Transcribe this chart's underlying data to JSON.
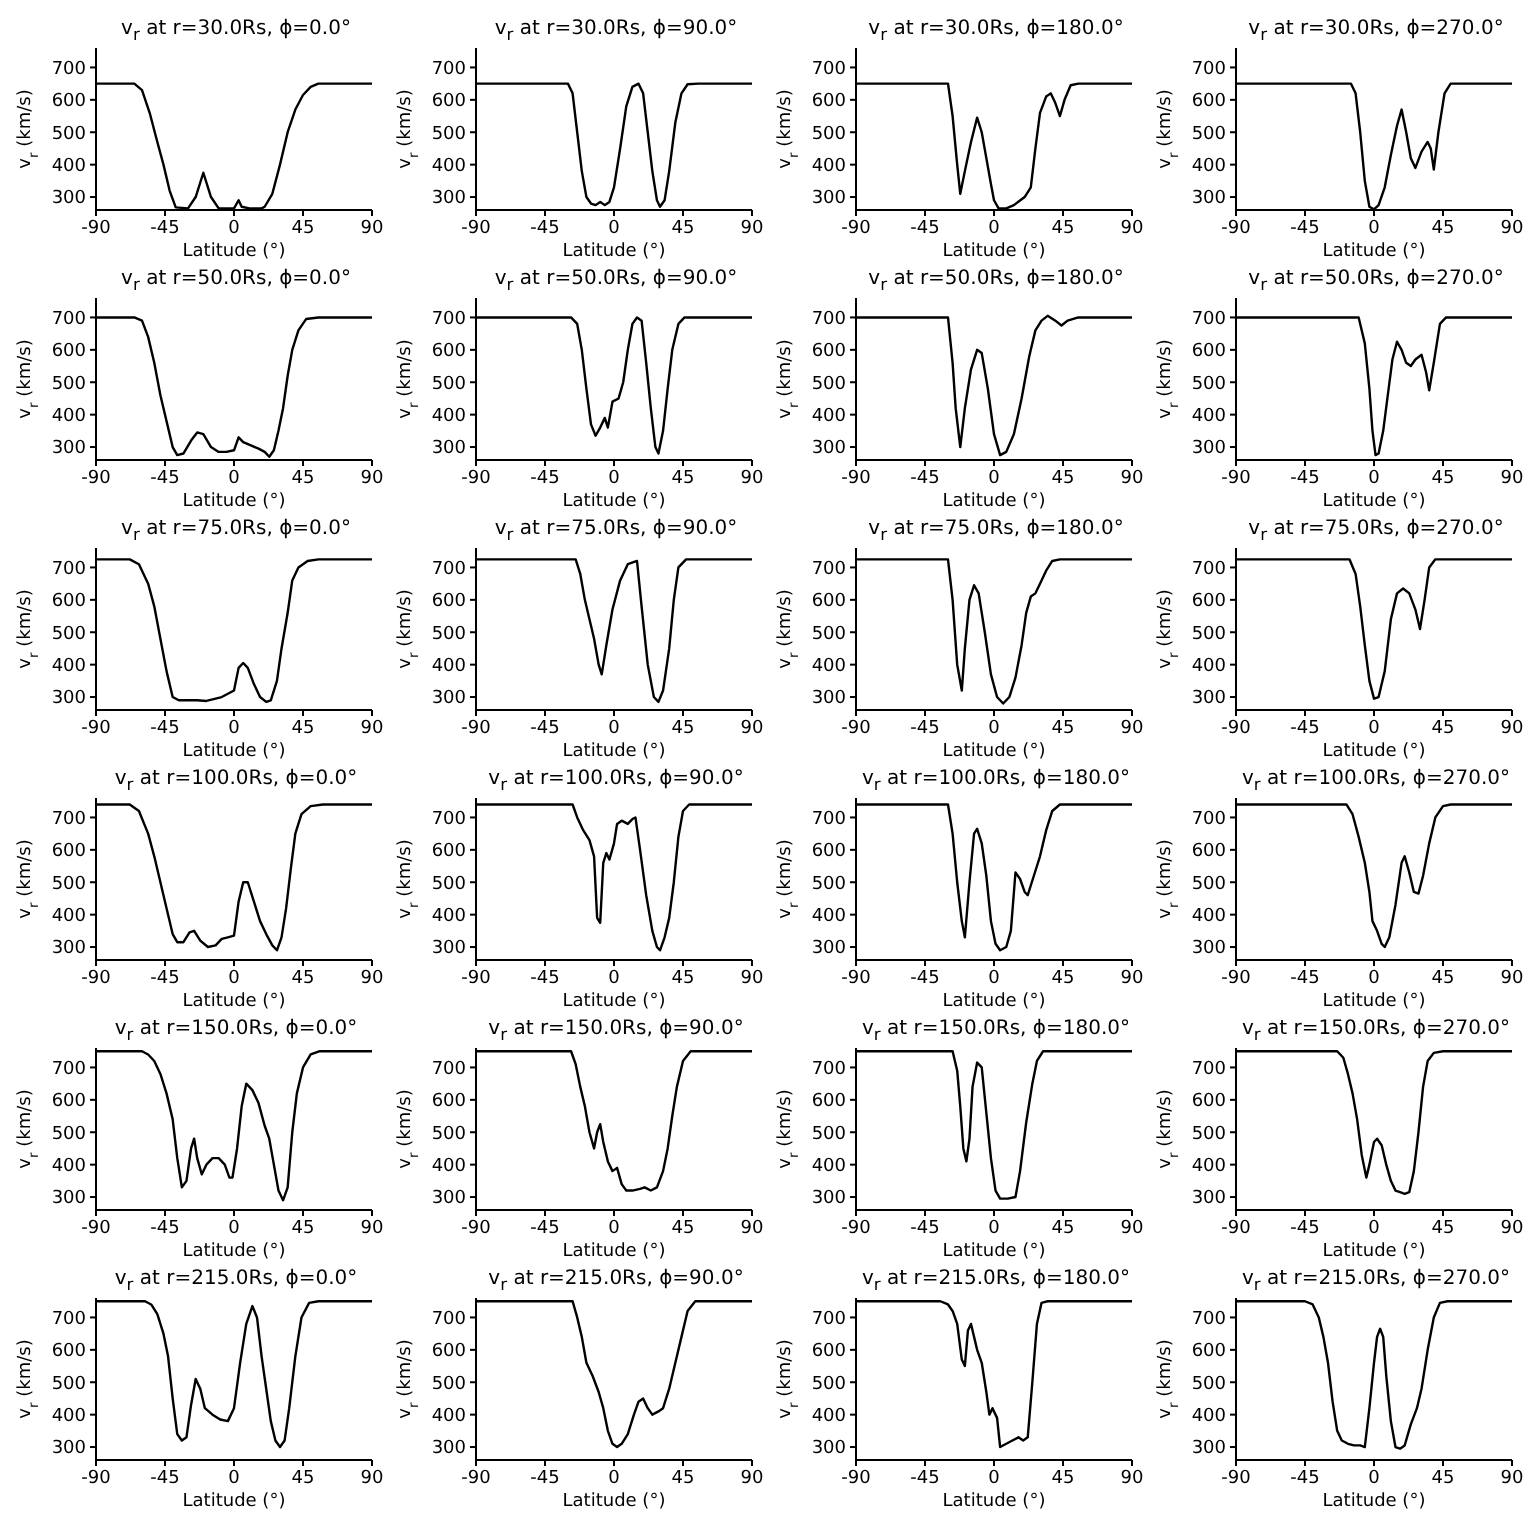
{
  "chart_data": [
    {
      "type": "line",
      "title": "v$_{r}$ at r=30.0Rs, ϕ=0.0°",
      "xlabel": "Latitude (°)",
      "ylabel": "v$_{r}$ (km/s)",
      "color": "#000000",
      "xlim": [
        -90,
        90
      ],
      "ylim": [
        260,
        760
      ],
      "xticks": [
        -90,
        -45,
        0,
        45,
        90
      ],
      "yticks": [
        300,
        400,
        500,
        600,
        700
      ],
      "x": [
        -90,
        -65,
        -60,
        -55,
        -50,
        -46,
        -42,
        -38,
        -30,
        -25,
        -20,
        -15,
        -10,
        0,
        3,
        5,
        10,
        18,
        20,
        25,
        30,
        35,
        40,
        45,
        50,
        55,
        90
      ],
      "values": [
        650,
        650,
        630,
        560,
        470,
        400,
        320,
        268,
        265,
        300,
        375,
        300,
        265,
        265,
        290,
        270,
        265,
        265,
        270,
        310,
        400,
        500,
        570,
        615,
        640,
        650,
        650
      ]
    },
    {
      "type": "line",
      "title": "v$_{r}$ at r=30.0Rs, ϕ=90.0°",
      "xlabel": "Latitude (°)",
      "ylabel": "v$_{r}$ (km/s)",
      "color": "#000000",
      "xlim": [
        -90,
        90
      ],
      "ylim": [
        260,
        760
      ],
      "xticks": [
        -90,
        -45,
        0,
        45,
        90
      ],
      "yticks": [
        300,
        400,
        500,
        600,
        700
      ],
      "x": [
        -90,
        -30,
        -27,
        -24,
        -21,
        -18,
        -15,
        -12,
        -9,
        -6,
        -3,
        0,
        4,
        8,
        12,
        16,
        19,
        22,
        25,
        28,
        30,
        33,
        36,
        40,
        44,
        48,
        55,
        90
      ],
      "values": [
        650,
        650,
        620,
        500,
        380,
        300,
        280,
        275,
        285,
        275,
        285,
        330,
        450,
        580,
        640,
        650,
        620,
        500,
        380,
        290,
        270,
        290,
        380,
        530,
        620,
        648,
        650,
        650
      ]
    },
    {
      "type": "line",
      "title": "v$_{r}$ at r=30.0Rs, ϕ=180.0°",
      "xlabel": "Latitude (°)",
      "ylabel": "v$_{r}$ (km/s)",
      "color": "#000000",
      "xlim": [
        -90,
        90
      ],
      "ylim": [
        260,
        760
      ],
      "xticks": [
        -90,
        -45,
        0,
        45,
        90
      ],
      "yticks": [
        300,
        400,
        500,
        600,
        700
      ],
      "x": [
        -90,
        -30,
        -27,
        -24,
        -22,
        -19,
        -15,
        -11,
        -8,
        -5,
        -2,
        0,
        3,
        8,
        13,
        20,
        24,
        27,
        30,
        34,
        37,
        40,
        43,
        46,
        50,
        55,
        90
      ],
      "values": [
        650,
        650,
        550,
        400,
        310,
        380,
        470,
        545,
        500,
        420,
        340,
        290,
        265,
        265,
        275,
        300,
        330,
        450,
        560,
        610,
        620,
        590,
        550,
        600,
        645,
        650,
        650
      ]
    },
    {
      "type": "line",
      "title": "v$_{r}$ at r=30.0Rs, ϕ=270.0°",
      "xlabel": "Latitude (°)",
      "ylabel": "v$_{r}$ (km/s)",
      "color": "#000000",
      "xlim": [
        -90,
        90
      ],
      "ylim": [
        260,
        760
      ],
      "xticks": [
        -90,
        -45,
        0,
        45,
        90
      ],
      "yticks": [
        300,
        400,
        500,
        600,
        700
      ],
      "x": [
        -90,
        -15,
        -12,
        -9,
        -6,
        -3,
        0,
        3,
        7,
        11,
        15,
        18,
        21,
        24,
        27,
        31,
        35,
        37,
        39,
        42,
        46,
        50,
        90
      ],
      "values": [
        650,
        650,
        620,
        500,
        350,
        270,
        262,
        275,
        330,
        430,
        520,
        570,
        500,
        420,
        390,
        440,
        470,
        450,
        385,
        500,
        620,
        650,
        650
      ]
    },
    {
      "type": "line",
      "title": "v$_{r}$ at r=50.0Rs, ϕ=0.0°",
      "xlabel": "Latitude (°)",
      "ylabel": "v$_{r}$ (km/s)",
      "color": "#000000",
      "xlim": [
        -90,
        90
      ],
      "ylim": [
        260,
        760
      ],
      "xticks": [
        -90,
        -45,
        0,
        45,
        90
      ],
      "yticks": [
        300,
        400,
        500,
        600,
        700
      ],
      "x": [
        -90,
        -65,
        -60,
        -56,
        -52,
        -48,
        -44,
        -40,
        -37,
        -33,
        -28,
        -24,
        -20,
        -15,
        -10,
        -5,
        0,
        3,
        6,
        11,
        16,
        20,
        23,
        26,
        29,
        32,
        35,
        38,
        42,
        47,
        55,
        90
      ],
      "values": [
        700,
        700,
        690,
        640,
        560,
        460,
        380,
        300,
        275,
        280,
        320,
        345,
        340,
        300,
        285,
        285,
        290,
        330,
        315,
        305,
        295,
        285,
        270,
        290,
        350,
        420,
        520,
        600,
        660,
        695,
        700,
        700
      ]
    },
    {
      "type": "line",
      "title": "v$_{r}$ at r=50.0Rs, ϕ=90.0°",
      "xlabel": "Latitude (°)",
      "ylabel": "v$_{r}$ (km/s)",
      "color": "#000000",
      "xlim": [
        -90,
        90
      ],
      "ylim": [
        260,
        760
      ],
      "xticks": [
        -90,
        -45,
        0,
        45,
        90
      ],
      "yticks": [
        300,
        400,
        500,
        600,
        700
      ],
      "x": [
        -90,
        -28,
        -24,
        -21,
        -18,
        -15,
        -12,
        -9,
        -6,
        -4,
        -1,
        3,
        6,
        9,
        12,
        15,
        18,
        21,
        24,
        27,
        29,
        32,
        35,
        38,
        42,
        46,
        90
      ],
      "values": [
        700,
        700,
        680,
        600,
        480,
        370,
        335,
        360,
        390,
        360,
        440,
        450,
        500,
        600,
        680,
        700,
        690,
        560,
        420,
        300,
        280,
        350,
        480,
        600,
        680,
        700,
        700
      ]
    },
    {
      "type": "line",
      "title": "v$_{r}$ at r=50.0Rs, ϕ=180.0°",
      "xlabel": "Latitude (°)",
      "ylabel": "v$_{r}$ (km/s)",
      "color": "#000000",
      "xlim": [
        -90,
        90
      ],
      "ylim": [
        260,
        760
      ],
      "xticks": [
        -90,
        -45,
        0,
        45,
        90
      ],
      "yticks": [
        300,
        400,
        500,
        600,
        700
      ],
      "x": [
        -90,
        -30,
        -27,
        -25,
        -22,
        -19,
        -15,
        -11,
        -8,
        -4,
        0,
        4,
        8,
        13,
        18,
        23,
        27,
        31,
        35,
        40,
        44,
        48,
        55,
        90
      ],
      "values": [
        700,
        700,
        560,
        420,
        300,
        420,
        540,
        600,
        590,
        480,
        340,
        275,
        285,
        340,
        450,
        580,
        660,
        690,
        705,
        690,
        675,
        690,
        700,
        700
      ]
    },
    {
      "type": "line",
      "title": "v$_{r}$ at r=50.0Rs, ϕ=270.0°",
      "xlabel": "Latitude (°)",
      "ylabel": "v$_{r}$ (km/s)",
      "color": "#000000",
      "xlim": [
        -90,
        90
      ],
      "ylim": [
        260,
        760
      ],
      "xticks": [
        -90,
        -45,
        0,
        45,
        90
      ],
      "yticks": [
        300,
        400,
        500,
        600,
        700
      ],
      "x": [
        -90,
        -10,
        -6,
        -3,
        -1,
        1,
        3,
        6,
        9,
        12,
        15,
        18,
        21,
        24,
        27,
        31,
        34,
        36,
        39,
        43,
        47,
        90
      ],
      "values": [
        700,
        700,
        620,
        480,
        350,
        275,
        280,
        350,
        460,
        570,
        625,
        600,
        560,
        550,
        570,
        585,
        530,
        475,
        560,
        680,
        700,
        700
      ]
    },
    {
      "type": "line",
      "title": "v$_{r}$ at r=75.0Rs, ϕ=0.0°",
      "xlabel": "Latitude (°)",
      "ylabel": "v$_{r}$ (km/s)",
      "color": "#000000",
      "xlim": [
        -90,
        90
      ],
      "ylim": [
        260,
        760
      ],
      "xticks": [
        -90,
        -45,
        0,
        45,
        90
      ],
      "yticks": [
        300,
        400,
        500,
        600,
        700
      ],
      "x": [
        -90,
        -68,
        -62,
        -56,
        -52,
        -48,
        -44,
        -40,
        -36,
        -30,
        -24,
        -18,
        -12,
        -8,
        -4,
        0,
        3,
        6,
        9,
        13,
        17,
        21,
        24,
        28,
        31,
        35,
        38,
        42,
        48,
        55,
        90
      ],
      "values": [
        725,
        725,
        710,
        650,
        580,
        480,
        380,
        300,
        290,
        290,
        290,
        288,
        295,
        300,
        310,
        320,
        390,
        405,
        390,
        340,
        300,
        285,
        290,
        350,
        450,
        560,
        660,
        700,
        720,
        725,
        725
      ]
    },
    {
      "type": "line",
      "title": "v$_{r}$ at r=75.0Rs, ϕ=90.0°",
      "xlabel": "Latitude (°)",
      "ylabel": "v$_{r}$ (km/s)",
      "color": "#000000",
      "xlim": [
        -90,
        90
      ],
      "ylim": [
        260,
        760
      ],
      "xticks": [
        -90,
        -45,
        0,
        45,
        90
      ],
      "yticks": [
        300,
        400,
        500,
        600,
        700
      ],
      "x": [
        -90,
        -25,
        -22,
        -19,
        -16,
        -13,
        -10,
        -8,
        -5,
        -1,
        4,
        9,
        15,
        18,
        22,
        26,
        29,
        32,
        36,
        39,
        42,
        47,
        90
      ],
      "values": [
        725,
        725,
        680,
        600,
        540,
        480,
        400,
        370,
        460,
        570,
        660,
        710,
        720,
        580,
        400,
        300,
        285,
        320,
        450,
        600,
        700,
        725,
        725
      ]
    },
    {
      "type": "line",
      "title": "v$_{r}$ at r=75.0Rs, ϕ=180.0°",
      "xlabel": "Latitude (°)",
      "ylabel": "v$_{r}$ (km/s)",
      "color": "#000000",
      "xlim": [
        -90,
        90
      ],
      "ylim": [
        260,
        760
      ],
      "xticks": [
        -90,
        -45,
        0,
        45,
        90
      ],
      "yticks": [
        300,
        400,
        500,
        600,
        700
      ],
      "x": [
        -90,
        -30,
        -27,
        -24,
        -21,
        -19,
        -16,
        -13,
        -10,
        -6,
        -2,
        2,
        6,
        10,
        14,
        18,
        21,
        24,
        27,
        30,
        34,
        38,
        43,
        90
      ],
      "values": [
        725,
        725,
        600,
        400,
        320,
        450,
        600,
        645,
        620,
        500,
        370,
        300,
        280,
        300,
        360,
        460,
        560,
        610,
        620,
        650,
        690,
        720,
        725,
        725
      ]
    },
    {
      "type": "line",
      "title": "v$_{r}$ at r=75.0Rs, ϕ=270.0°",
      "xlabel": "Latitude (°)",
      "ylabel": "v$_{r}$ (km/s)",
      "color": "#000000",
      "xlim": [
        -90,
        90
      ],
      "ylim": [
        260,
        760
      ],
      "xticks": [
        -90,
        -45,
        0,
        45,
        90
      ],
      "yticks": [
        300,
        400,
        500,
        600,
        700
      ],
      "x": [
        -90,
        -16,
        -12,
        -9,
        -6,
        -3,
        0,
        3,
        7,
        11,
        15,
        19,
        23,
        27,
        30,
        33,
        36,
        40,
        90
      ],
      "values": [
        725,
        725,
        680,
        580,
        460,
        350,
        295,
        300,
        380,
        540,
        620,
        635,
        620,
        570,
        510,
        600,
        700,
        725,
        725
      ]
    },
    {
      "type": "line",
      "title": "v$_{r}$ at r=100.0Rs, ϕ=0.0°",
      "xlabel": "Latitude (°)",
      "ylabel": "v$_{r}$ (km/s)",
      "color": "#000000",
      "xlim": [
        -90,
        90
      ],
      "ylim": [
        260,
        760
      ],
      "xticks": [
        -90,
        -45,
        0,
        45,
        90
      ],
      "yticks": [
        300,
        400,
        500,
        600,
        700
      ],
      "x": [
        -90,
        -68,
        -62,
        -56,
        -52,
        -48,
        -44,
        -40,
        -37,
        -33,
        -29,
        -26,
        -22,
        -17,
        -12,
        -8,
        -4,
        0,
        3,
        6,
        9,
        13,
        17,
        21,
        25,
        28,
        31,
        34,
        37,
        40,
        44,
        50,
        58,
        90
      ],
      "values": [
        740,
        740,
        720,
        650,
        580,
        500,
        420,
        340,
        315,
        315,
        345,
        350,
        320,
        300,
        305,
        325,
        330,
        335,
        440,
        500,
        500,
        440,
        380,
        340,
        305,
        290,
        330,
        420,
        540,
        650,
        710,
        735,
        740,
        740
      ]
    },
    {
      "type": "line",
      "title": "v$_{r}$ at r=100.0Rs, ϕ=90.0°",
      "xlabel": "Latitude (°)",
      "ylabel": "v$_{r}$ (km/s)",
      "color": "#000000",
      "xlim": [
        -90,
        90
      ],
      "ylim": [
        260,
        760
      ],
      "xticks": [
        -90,
        -45,
        0,
        45,
        90
      ],
      "yticks": [
        300,
        400,
        500,
        600,
        700
      ],
      "x": [
        -90,
        -27,
        -24,
        -20,
        -16,
        -13,
        -11,
        -9,
        -7,
        -5,
        -3,
        0,
        2,
        5,
        9,
        12,
        14,
        17,
        21,
        25,
        28,
        30,
        33,
        36,
        39,
        42,
        45,
        49,
        90
      ],
      "values": [
        740,
        740,
        700,
        660,
        630,
        580,
        390,
        375,
        560,
        590,
        570,
        620,
        680,
        690,
        680,
        695,
        700,
        600,
        460,
        350,
        300,
        290,
        330,
        390,
        500,
        640,
        720,
        740,
        740
      ]
    },
    {
      "type": "line",
      "title": "v$_{r}$ at r=100.0Rs, ϕ=180.0°",
      "xlabel": "Latitude (°)",
      "ylabel": "v$_{r}$ (km/s)",
      "color": "#000000",
      "xlim": [
        -90,
        90
      ],
      "ylim": [
        260,
        760
      ],
      "xticks": [
        -90,
        -45,
        0,
        45,
        90
      ],
      "yticks": [
        300,
        400,
        500,
        600,
        700
      ],
      "x": [
        -90,
        -30,
        -27,
        -24,
        -21,
        -19,
        -16,
        -13,
        -11,
        -8,
        -5,
        -2,
        1,
        4,
        8,
        11,
        14,
        17,
        20,
        22,
        26,
        30,
        34,
        38,
        43,
        90
      ],
      "values": [
        740,
        740,
        650,
        500,
        380,
        330,
        500,
        650,
        665,
        620,
        520,
        380,
        310,
        290,
        300,
        350,
        530,
        510,
        470,
        460,
        520,
        580,
        660,
        720,
        740,
        740
      ]
    },
    {
      "type": "line",
      "title": "v$_{r}$ at r=100.0Rs, ϕ=270.0°",
      "xlabel": "Latitude (°)",
      "ylabel": "v$_{r}$ (km/s)",
      "color": "#000000",
      "xlim": [
        -90,
        90
      ],
      "ylim": [
        260,
        760
      ],
      "xticks": [
        -90,
        -45,
        0,
        45,
        90
      ],
      "yticks": [
        300,
        400,
        500,
        600,
        700
      ],
      "x": [
        -90,
        -18,
        -14,
        -10,
        -6,
        -3,
        -1,
        2,
        5,
        7,
        10,
        14,
        18,
        20,
        23,
        26,
        29,
        32,
        36,
        40,
        45,
        50,
        90
      ],
      "values": [
        740,
        740,
        710,
        640,
        560,
        470,
        380,
        350,
        310,
        300,
        330,
        430,
        560,
        580,
        530,
        470,
        465,
        520,
        620,
        700,
        735,
        740,
        740
      ]
    },
    {
      "type": "line",
      "title": "v$_{r}$ at r=150.0Rs, ϕ=0.0°",
      "xlabel": "Latitude (°)",
      "ylabel": "v$_{r}$ (km/s)",
      "color": "#000000",
      "xlim": [
        -90,
        90
      ],
      "ylim": [
        260,
        760
      ],
      "xticks": [
        -90,
        -45,
        0,
        45,
        90
      ],
      "yticks": [
        300,
        400,
        500,
        600,
        700
      ],
      "x": [
        -90,
        -60,
        -56,
        -52,
        -48,
        -44,
        -40,
        -37,
        -34,
        -31,
        -28,
        -26,
        -24,
        -21,
        -18,
        -14,
        -10,
        -6,
        -3,
        -1,
        2,
        5,
        8,
        12,
        16,
        20,
        23,
        26,
        29,
        32,
        35,
        38,
        41,
        45,
        50,
        56,
        90
      ],
      "values": [
        750,
        750,
        740,
        720,
        680,
        620,
        540,
        420,
        330,
        350,
        450,
        480,
        420,
        370,
        400,
        420,
        420,
        400,
        360,
        360,
        450,
        580,
        650,
        630,
        590,
        520,
        480,
        400,
        320,
        290,
        330,
        500,
        620,
        700,
        740,
        750,
        750
      ]
    },
    {
      "type": "line",
      "title": "v$_{r}$ at r=150.0Rs, ϕ=90.0°",
      "xlabel": "Latitude (°)",
      "ylabel": "v$_{r}$ (km/s)",
      "color": "#000000",
      "xlim": [
        -90,
        90
      ],
      "ylim": [
        260,
        760
      ],
      "xticks": [
        -90,
        -45,
        0,
        45,
        90
      ],
      "yticks": [
        300,
        400,
        500,
        600,
        700
      ],
      "x": [
        -90,
        -28,
        -25,
        -22,
        -19,
        -16,
        -13,
        -11,
        -9,
        -7,
        -4,
        -1,
        2,
        5,
        8,
        12,
        17,
        20,
        24,
        28,
        32,
        35,
        38,
        41,
        45,
        50,
        90
      ],
      "values": [
        750,
        750,
        710,
        640,
        580,
        500,
        450,
        500,
        525,
        470,
        410,
        380,
        390,
        340,
        320,
        320,
        325,
        330,
        320,
        330,
        380,
        450,
        550,
        640,
        720,
        750,
        750
      ]
    },
    {
      "type": "line",
      "title": "v$_{r}$ at r=150.0Rs, ϕ=180.0°",
      "xlabel": "Latitude (°)",
      "ylabel": "v$_{r}$ (km/s)",
      "color": "#000000",
      "xlim": [
        -90,
        90
      ],
      "ylim": [
        260,
        760
      ],
      "xticks": [
        -90,
        -45,
        0,
        45,
        90
      ],
      "yticks": [
        300,
        400,
        500,
        600,
        700
      ],
      "x": [
        -90,
        -27,
        -24,
        -22,
        -20,
        -18,
        -16,
        -14,
        -11,
        -8,
        -5,
        -2,
        1,
        4,
        9,
        14,
        17,
        21,
        25,
        28,
        32,
        90
      ],
      "values": [
        750,
        750,
        690,
        580,
        450,
        410,
        480,
        640,
        715,
        700,
        560,
        420,
        320,
        295,
        295,
        300,
        380,
        530,
        650,
        720,
        750,
        750
      ]
    },
    {
      "type": "line",
      "title": "v$_{r}$ at r=150.0Rs, ϕ=270.0°",
      "xlabel": "Latitude (°)",
      "ylabel": "v$_{r}$ (km/s)",
      "color": "#000000",
      "xlim": [
        -90,
        90
      ],
      "ylim": [
        260,
        760
      ],
      "xticks": [
        -90,
        -45,
        0,
        45,
        90
      ],
      "yticks": [
        300,
        400,
        500,
        600,
        700
      ],
      "x": [
        -90,
        -24,
        -20,
        -17,
        -14,
        -11,
        -8,
        -5,
        -3,
        0,
        2,
        5,
        8,
        11,
        14,
        17,
        20,
        23,
        26,
        29,
        32,
        35,
        39,
        45,
        90
      ],
      "values": [
        750,
        750,
        730,
        680,
        620,
        540,
        430,
        360,
        400,
        470,
        480,
        460,
        400,
        350,
        320,
        315,
        310,
        315,
        380,
        500,
        640,
        720,
        745,
        750,
        750
      ]
    },
    {
      "type": "line",
      "title": "v$_{r}$ at r=215.0Rs, ϕ=0.0°",
      "xlabel": "Latitude (°)",
      "ylabel": "v$_{r}$ (km/s)",
      "color": "#000000",
      "xlim": [
        -90,
        90
      ],
      "ylim": [
        260,
        760
      ],
      "xticks": [
        -90,
        -45,
        0,
        45,
        90
      ],
      "yticks": [
        300,
        400,
        500,
        600,
        700
      ],
      "x": [
        -90,
        -58,
        -54,
        -50,
        -46,
        -43,
        -40,
        -37,
        -34,
        -31,
        -28,
        -25,
        -22,
        -19,
        -14,
        -9,
        -4,
        0,
        4,
        8,
        12,
        15,
        18,
        21,
        24,
        27,
        30,
        33,
        36,
        40,
        44,
        49,
        55,
        90
      ],
      "values": [
        750,
        750,
        740,
        710,
        650,
        580,
        450,
        340,
        320,
        330,
        430,
        510,
        480,
        420,
        400,
        385,
        380,
        420,
        560,
        680,
        735,
        700,
        580,
        480,
        380,
        320,
        300,
        320,
        420,
        580,
        700,
        745,
        750,
        750
      ]
    },
    {
      "type": "line",
      "title": "v$_{r}$ at r=215.0Rs, ϕ=90.0°",
      "xlabel": "Latitude (°)",
      "ylabel": "v$_{r}$ (km/s)",
      "color": "#000000",
      "xlim": [
        -90,
        90
      ],
      "ylim": [
        260,
        760
      ],
      "xticks": [
        -90,
        -45,
        0,
        45,
        90
      ],
      "yticks": [
        300,
        400,
        500,
        600,
        700
      ],
      "x": [
        -90,
        -27,
        -24,
        -21,
        -18,
        -14,
        -10,
        -7,
        -4,
        -1,
        2,
        5,
        9,
        13,
        16,
        19,
        22,
        25,
        29,
        32,
        36,
        40,
        44,
        48,
        53,
        90
      ],
      "values": [
        750,
        750,
        700,
        640,
        560,
        520,
        470,
        420,
        350,
        310,
        300,
        310,
        340,
        400,
        440,
        450,
        420,
        400,
        410,
        420,
        480,
        560,
        640,
        720,
        750,
        750
      ]
    },
    {
      "type": "line",
      "title": "v$_{r}$ at r=215.0Rs, ϕ=180.0°",
      "xlabel": "Latitude (°)",
      "ylabel": "v$_{r}$ (km/s)",
      "color": "#000000",
      "xlim": [
        -90,
        90
      ],
      "ylim": [
        260,
        760
      ],
      "xticks": [
        -90,
        -45,
        0,
        45,
        90
      ],
      "yticks": [
        300,
        400,
        500,
        600,
        700
      ],
      "x": [
        -90,
        -35,
        -30,
        -27,
        -24,
        -21,
        -19,
        -17,
        -15,
        -13,
        -11,
        -8,
        -5,
        -3,
        -1,
        2,
        4,
        8,
        12,
        16,
        19,
        22,
        25,
        28,
        31,
        35,
        90
      ],
      "values": [
        750,
        750,
        740,
        720,
        680,
        570,
        550,
        660,
        680,
        640,
        600,
        560,
        470,
        400,
        420,
        390,
        300,
        310,
        320,
        330,
        320,
        330,
        500,
        680,
        745,
        750,
        750
      ]
    },
    {
      "type": "line",
      "title": "v$_{r}$ at r=215.0Rs, ϕ=270.0°",
      "xlabel": "Latitude (°)",
      "ylabel": "v$_{r}$ (km/s)",
      "color": "#000000",
      "xlim": [
        -90,
        90
      ],
      "ylim": [
        260,
        760
      ],
      "xticks": [
        -90,
        -45,
        0,
        45,
        90
      ],
      "yticks": [
        300,
        400,
        500,
        600,
        700
      ],
      "x": [
        -90,
        -45,
        -40,
        -36,
        -33,
        -30,
        -27,
        -24,
        -21,
        -17,
        -13,
        -9,
        -6,
        -3,
        0,
        2,
        4,
        6,
        8,
        11,
        14,
        17,
        20,
        24,
        28,
        31,
        35,
        39,
        43,
        48,
        90
      ],
      "values": [
        750,
        750,
        740,
        700,
        640,
        560,
        440,
        350,
        320,
        310,
        305,
        305,
        300,
        420,
        560,
        640,
        665,
        640,
        520,
        380,
        300,
        295,
        305,
        370,
        420,
        480,
        600,
        700,
        745,
        750,
        750
      ]
    }
  ]
}
